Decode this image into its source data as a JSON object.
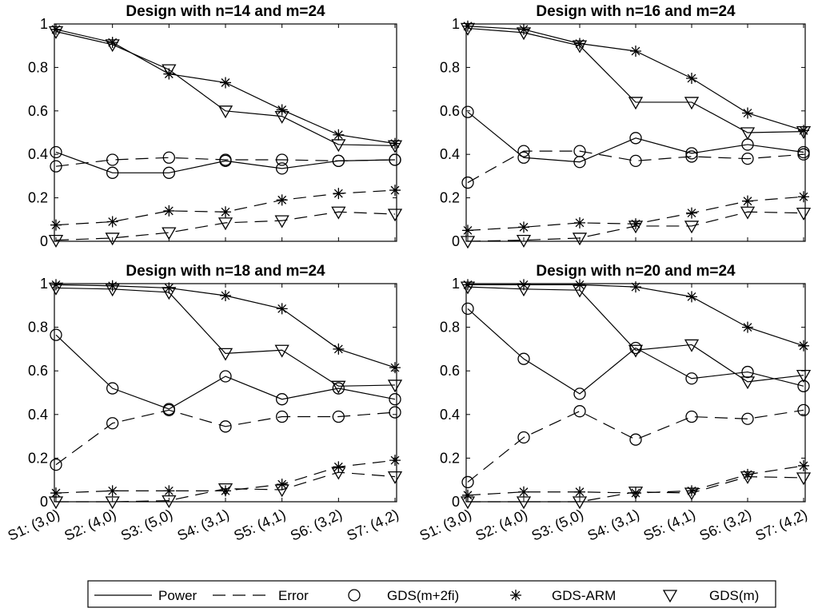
{
  "chart_data": [
    {
      "type": "line",
      "title": "Design with n=14 and m=24",
      "categories": [
        "S1: (3,0)",
        "S2: (4,0)",
        "S3: (5,0)",
        "S4: (3,1)",
        "S5: (4,1)",
        "S6: (3,2)",
        "S7: (4,2)"
      ],
      "ylim": [
        0,
        1
      ],
      "yticks": [
        "0",
        "0.2",
        "0.4",
        "0.6",
        "0.8",
        "1"
      ],
      "series": [
        {
          "method": "gdsfi",
          "measure": "power",
          "values": [
            0.41,
            0.315,
            0.315,
            0.37,
            0.335,
            0.37,
            0.375
          ]
        },
        {
          "method": "gdsfi",
          "measure": "error",
          "values": [
            0.345,
            0.375,
            0.385,
            0.375,
            0.375,
            0.37,
            0.375
          ]
        },
        {
          "method": "arm",
          "measure": "power",
          "values": [
            0.975,
            0.915,
            0.77,
            0.73,
            0.605,
            0.49,
            0.45
          ]
        },
        {
          "method": "arm",
          "measure": "error",
          "values": [
            0.075,
            0.09,
            0.14,
            0.135,
            0.19,
            0.22,
            0.235
          ]
        },
        {
          "method": "gdsm",
          "measure": "power",
          "values": [
            0.965,
            0.905,
            0.79,
            0.6,
            0.575,
            0.445,
            0.44
          ]
        },
        {
          "method": "gdsm",
          "measure": "error",
          "values": [
            0.005,
            0.015,
            0.04,
            0.085,
            0.095,
            0.135,
            0.125
          ]
        }
      ]
    },
    {
      "type": "line",
      "title": "Design with n=16 and m=24",
      "categories": [
        "S1: (3,0)",
        "S2: (4,0)",
        "S3: (5,0)",
        "S4: (3,1)",
        "S5: (4,1)",
        "S6: (3,2)",
        "S7: (4,2)"
      ],
      "ylim": [
        0,
        1
      ],
      "yticks": [
        "0",
        "0.2",
        "0.4",
        "0.6",
        "0.8",
        "1"
      ],
      "series": [
        {
          "method": "gdsfi",
          "measure": "power",
          "values": [
            0.595,
            0.385,
            0.365,
            0.475,
            0.405,
            0.445,
            0.41
          ]
        },
        {
          "method": "gdsfi",
          "measure": "error",
          "values": [
            0.27,
            0.415,
            0.415,
            0.37,
            0.39,
            0.38,
            0.4
          ]
        },
        {
          "method": "arm",
          "measure": "power",
          "values": [
            0.99,
            0.975,
            0.91,
            0.875,
            0.75,
            0.59,
            0.51
          ]
        },
        {
          "method": "arm",
          "measure": "error",
          "values": [
            0.05,
            0.065,
            0.085,
            0.08,
            0.13,
            0.185,
            0.205
          ]
        },
        {
          "method": "gdsm",
          "measure": "power",
          "values": [
            0.98,
            0.96,
            0.9,
            0.64,
            0.64,
            0.5,
            0.505
          ]
        },
        {
          "method": "gdsm",
          "measure": "error",
          "values": [
            0.0,
            0.005,
            0.015,
            0.07,
            0.07,
            0.135,
            0.13
          ]
        }
      ]
    },
    {
      "type": "line",
      "title": "Design with n=18 and m=24",
      "categories": [
        "S1: (3,0)",
        "S2: (4,0)",
        "S3: (5,0)",
        "S4: (3,1)",
        "S5: (4,1)",
        "S6: (3,2)",
        "S7: (4,2)"
      ],
      "ylim": [
        0,
        1
      ],
      "yticks": [
        "0",
        "0.2",
        "0.4",
        "0.6",
        "0.8",
        "1"
      ],
      "series": [
        {
          "method": "gdsfi",
          "measure": "power",
          "values": [
            0.765,
            0.52,
            0.425,
            0.575,
            0.47,
            0.52,
            0.47
          ]
        },
        {
          "method": "gdsfi",
          "measure": "error",
          "values": [
            0.17,
            0.36,
            0.42,
            0.345,
            0.39,
            0.39,
            0.41
          ]
        },
        {
          "method": "arm",
          "measure": "power",
          "values": [
            0.995,
            0.99,
            0.98,
            0.945,
            0.885,
            0.7,
            0.615
          ]
        },
        {
          "method": "arm",
          "measure": "error",
          "values": [
            0.04,
            0.05,
            0.05,
            0.05,
            0.08,
            0.16,
            0.19
          ]
        },
        {
          "method": "gdsm",
          "measure": "power",
          "values": [
            0.98,
            0.975,
            0.96,
            0.68,
            0.695,
            0.53,
            0.535
          ]
        },
        {
          "method": "gdsm",
          "measure": "error",
          "values": [
            0.0,
            0.0,
            0.005,
            0.06,
            0.055,
            0.135,
            0.115
          ]
        }
      ]
    },
    {
      "type": "line",
      "title": "Design with n=20 and m=24",
      "categories": [
        "S1: (3,0)",
        "S2: (4,0)",
        "S3: (5,0)",
        "S4: (3,1)",
        "S5: (4,1)",
        "S6: (3,2)",
        "S7: (4,2)"
      ],
      "ylim": [
        0,
        1
      ],
      "yticks": [
        "0",
        "0.2",
        "0.4",
        "0.6",
        "0.8",
        "1"
      ],
      "series": [
        {
          "method": "gdsfi",
          "measure": "power",
          "values": [
            0.885,
            0.655,
            0.495,
            0.705,
            0.565,
            0.595,
            0.53
          ]
        },
        {
          "method": "gdsfi",
          "measure": "error",
          "values": [
            0.09,
            0.295,
            0.415,
            0.285,
            0.39,
            0.38,
            0.42
          ]
        },
        {
          "method": "arm",
          "measure": "power",
          "values": [
            0.995,
            0.995,
            0.995,
            0.985,
            0.94,
            0.8,
            0.715
          ]
        },
        {
          "method": "arm",
          "measure": "error",
          "values": [
            0.03,
            0.045,
            0.045,
            0.04,
            0.05,
            0.125,
            0.165
          ]
        },
        {
          "method": "gdsm",
          "measure": "power",
          "values": [
            0.985,
            0.975,
            0.97,
            0.695,
            0.72,
            0.55,
            0.58
          ]
        },
        {
          "method": "gdsm",
          "measure": "error",
          "values": [
            0.0,
            0.0,
            0.0,
            0.045,
            0.04,
            0.115,
            0.11
          ]
        }
      ]
    }
  ],
  "legend": {
    "placement": "bottom",
    "items": [
      {
        "key": "power",
        "label": "Power",
        "kind": "line",
        "dash": "solid"
      },
      {
        "key": "error",
        "label": "Error",
        "kind": "line",
        "dash": "dashed"
      },
      {
        "key": "gdsfi",
        "label": "GDS(m+2fi)",
        "kind": "marker",
        "marker": "circle"
      },
      {
        "key": "arm",
        "label": "GDS-ARM",
        "kind": "marker",
        "marker": "asterisk"
      },
      {
        "key": "gdsm",
        "label": "GDS(m)",
        "kind": "marker",
        "marker": "triangle-down"
      }
    ]
  },
  "colors": {
    "ink": "#000000",
    "background": "#ffffff"
  }
}
